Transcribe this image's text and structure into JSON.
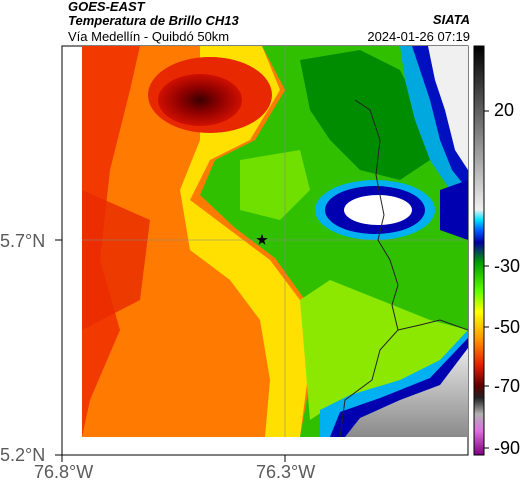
{
  "header": {
    "satellite": "GOES-EAST",
    "product": "Temperatura de Brillo CH13",
    "route": "Vía Medellín - Quibdó 50km",
    "organization": "SIATA",
    "datetime": "2024-01-26 07:19"
  },
  "map": {
    "lat_labels": [
      "5.7°N",
      "5.2°N"
    ],
    "lon_labels": [
      "76.8°W",
      "76.3°W"
    ],
    "marker_icon": "star-icon"
  },
  "colorbar": {
    "ticks": [
      "20",
      "-30",
      "-50",
      "-70",
      "-90"
    ],
    "colors": {
      "warm": "#ffffff",
      "cold_magenta": "#c040c0",
      "dark_red": "#7a0000",
      "red": "#e02000",
      "orange": "#ff8000",
      "yellow": "#ffff00",
      "green": "#00c000",
      "cyan": "#00c0ff",
      "blue": "#0000b0",
      "gray": "#b0b0b0",
      "black": "#000000"
    }
  }
}
